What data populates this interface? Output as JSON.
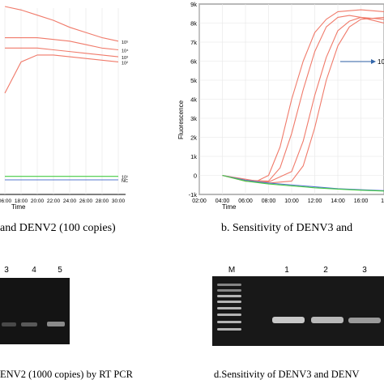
{
  "panels": {
    "a": {
      "caption": "and DENV2 (100 copies)",
      "xlabel": "Time",
      "xticks": [
        "06:00",
        "18:00",
        "20:00",
        "22:00",
        "24:00",
        "26:00",
        "28:00",
        "30:00"
      ],
      "curve_labels": [
        "10⁵",
        "10⁴",
        "10³",
        "10²",
        "10¹",
        "NC"
      ]
    },
    "b": {
      "caption": "b. Sensitivity of DENV3 and",
      "xlabel": "Time",
      "ylabel": "Fluorescence",
      "xticks": [
        "02:00",
        "04:00",
        "06:00",
        "08:00",
        "10:00",
        "12:00",
        "14:00",
        "16:00",
        "18"
      ],
      "yticks": [
        "-1k",
        "0",
        "1k",
        "2k",
        "3k",
        "4k",
        "5k",
        "6k",
        "7k",
        "8k",
        "9k"
      ],
      "annotation": "10"
    },
    "c": {
      "caption": "ENV2 (1000 copies) by RT PCR",
      "lanes": [
        "3",
        "4",
        "5"
      ]
    },
    "d": {
      "caption": "d.Sensitivity of DENV3 and DENV",
      "lanes": [
        "M",
        "1",
        "2",
        "3"
      ]
    }
  },
  "chart_data": [
    {
      "type": "line",
      "panel": "a",
      "xlabel": "Time",
      "x_ticks": [
        "06:00",
        "18:00",
        "20:00",
        "22:00",
        "24:00",
        "26:00",
        "28:00",
        "30:00"
      ],
      "series": [
        {
          "name": "10⁵",
          "color": "#f07a6a",
          "values": [
            1.0,
            0.98,
            0.95,
            0.92,
            0.88,
            0.85,
            0.82,
            0.8
          ]
        },
        {
          "name": "10⁴",
          "color": "#f07a6a",
          "values": [
            0.82,
            0.82,
            0.82,
            0.81,
            0.8,
            0.78,
            0.76,
            0.75
          ]
        },
        {
          "name": "10³",
          "color": "#f07a6a",
          "values": [
            0.76,
            0.76,
            0.76,
            0.75,
            0.74,
            0.73,
            0.72,
            0.71
          ]
        },
        {
          "name": "10²",
          "color": "#f07a6a",
          "values": [
            0.5,
            0.68,
            0.72,
            0.72,
            0.71,
            0.7,
            0.69,
            0.68
          ]
        },
        {
          "name": "10¹",
          "color": "#44cc44",
          "values": [
            0.02,
            0.02,
            0.02,
            0.02,
            0.02,
            0.02,
            0.02,
            0.02
          ]
        },
        {
          "name": "NC",
          "color": "#5577cc",
          "values": [
            0.0,
            0.0,
            0.0,
            0.0,
            0.0,
            0.0,
            0.0,
            0.0
          ]
        }
      ]
    },
    {
      "type": "line",
      "panel": "b",
      "xlabel": "Time",
      "ylabel": "Fluorescence",
      "ylim": [
        -1000,
        9000
      ],
      "xlim": [
        2,
        18
      ],
      "series": [
        {
          "color": "#f07a6a",
          "x": [
            4,
            6,
            7,
            8,
            9,
            10,
            11,
            12,
            13,
            14,
            16,
            18
          ],
          "y": [
            0,
            -200,
            -300,
            0,
            1500,
            4000,
            6000,
            7500,
            8200,
            8600,
            8700,
            8600
          ]
        },
        {
          "color": "#f07a6a",
          "x": [
            4,
            6,
            8,
            9,
            10,
            11,
            12,
            13,
            14,
            15,
            16,
            18
          ],
          "y": [
            0,
            -250,
            -300,
            400,
            2200,
            4500,
            6500,
            7800,
            8300,
            8400,
            8300,
            8000
          ]
        },
        {
          "color": "#f07a6a",
          "x": [
            4,
            6,
            8,
            10,
            11,
            12,
            13,
            14,
            15,
            16,
            18
          ],
          "y": [
            0,
            -300,
            -350,
            200,
            1800,
            4200,
            6200,
            7600,
            8100,
            8300,
            8200
          ]
        },
        {
          "color": "#f07a6a",
          "x": [
            4,
            6,
            8,
            10,
            11,
            12,
            13,
            14,
            15,
            16,
            18
          ],
          "y": [
            0,
            -300,
            -400,
            -300,
            500,
            2500,
            5000,
            6800,
            7800,
            8200,
            8300
          ]
        },
        {
          "color": "#5577cc",
          "x": [
            4,
            6,
            8,
            10,
            12,
            14,
            16,
            18
          ],
          "y": [
            0,
            -250,
            -400,
            -500,
            -600,
            -700,
            -750,
            -800
          ]
        },
        {
          "color": "#44cc44",
          "x": [
            4,
            6,
            8,
            10,
            12,
            14,
            16,
            18
          ],
          "y": [
            0,
            -300,
            -450,
            -550,
            -650,
            -720,
            -780,
            -820
          ]
        }
      ]
    }
  ]
}
